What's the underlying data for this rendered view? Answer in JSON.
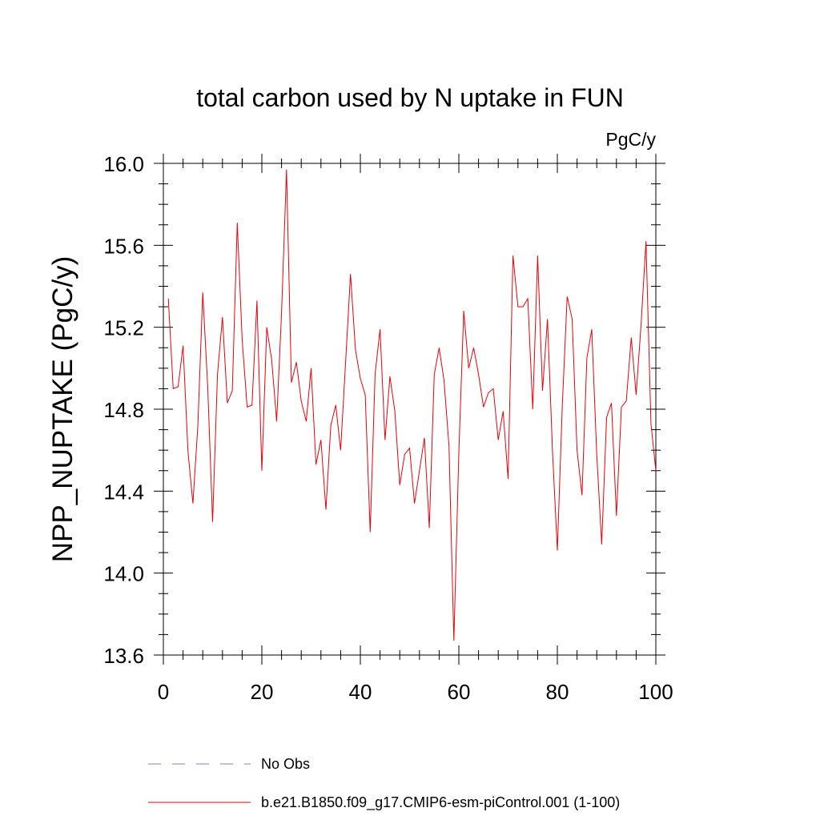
{
  "chart_data": {
    "type": "line",
    "title": "total carbon used by N uptake in FUN",
    "units": "PgC/y",
    "ylabel": "NPP_NUPTAKE  (PgC/y)",
    "xlabel": "",
    "xlim": [
      0,
      100
    ],
    "ylim": [
      13.6,
      16.0
    ],
    "xticks": [
      0,
      20,
      40,
      60,
      80,
      100
    ],
    "yticks": [
      13.6,
      14.0,
      14.4,
      14.8,
      15.2,
      15.6,
      16.0
    ],
    "xtick_labels": [
      "0",
      "20",
      "40",
      "60",
      "80",
      "100"
    ],
    "ytick_labels": [
      "13.6",
      "14.0",
      "14.4",
      "14.8",
      "15.2",
      "15.6",
      "16.0"
    ],
    "grid": false,
    "legend_position": "bottom",
    "colors": {
      "model": "#e8000b",
      "obs": "#7f7fbf"
    },
    "series": [
      {
        "name": "b.e21.B1850.f09_g17.CMIP6-esm-piControl.001 (1-100)",
        "style": "solid",
        "x": [
          1,
          2,
          3,
          4,
          5,
          6,
          7,
          8,
          9,
          10,
          11,
          12,
          13,
          14,
          15,
          16,
          17,
          18,
          19,
          20,
          21,
          22,
          23,
          24,
          25,
          26,
          27,
          28,
          29,
          30,
          31,
          32,
          33,
          34,
          35,
          36,
          37,
          38,
          39,
          40,
          41,
          42,
          43,
          44,
          45,
          46,
          47,
          48,
          49,
          50,
          51,
          52,
          53,
          54,
          55,
          56,
          57,
          58,
          59,
          60,
          61,
          62,
          63,
          64,
          65,
          66,
          67,
          68,
          69,
          70,
          71,
          72,
          73,
          74,
          75,
          76,
          77,
          78,
          79,
          80,
          81,
          82,
          83,
          84,
          85,
          86,
          87,
          88,
          89,
          90,
          91,
          92,
          93,
          94,
          95,
          96,
          97,
          98,
          99,
          100
        ],
        "values": [
          15.34,
          14.9,
          14.91,
          15.11,
          14.59,
          14.34,
          14.72,
          15.37,
          14.91,
          14.25,
          14.97,
          15.25,
          14.83,
          14.89,
          15.71,
          15.14,
          14.81,
          14.82,
          15.33,
          14.5,
          15.2,
          15.04,
          14.74,
          15.27,
          15.97,
          14.93,
          15.03,
          14.84,
          14.74,
          15.0,
          14.53,
          14.65,
          14.31,
          14.72,
          14.82,
          14.6,
          15.03,
          15.46,
          15.09,
          14.95,
          14.87,
          14.2,
          14.97,
          15.19,
          14.65,
          14.96,
          14.79,
          14.43,
          14.58,
          14.61,
          14.34,
          14.5,
          14.66,
          14.22,
          14.97,
          15.1,
          14.94,
          14.62,
          13.67,
          14.59,
          15.28,
          15.0,
          15.1,
          14.97,
          14.81,
          14.88,
          14.9,
          14.65,
          14.79,
          14.46,
          15.55,
          15.3,
          15.3,
          15.34,
          14.8,
          15.55,
          14.89,
          15.24,
          14.6,
          14.11,
          14.82,
          15.35,
          15.24,
          14.6,
          14.38,
          15.05,
          15.19,
          14.58,
          14.14,
          14.76,
          14.83,
          14.28,
          14.81,
          14.84,
          15.15,
          14.87,
          15.21,
          15.62,
          14.73,
          14.5
        ]
      }
    ]
  },
  "legend": {
    "items": [
      {
        "label": "No Obs",
        "style": "dashed"
      },
      {
        "label": "b.e21.B1850.f09_g17.CMIP6-esm-piControl.001 (1-100)",
        "style": "solid"
      }
    ]
  }
}
